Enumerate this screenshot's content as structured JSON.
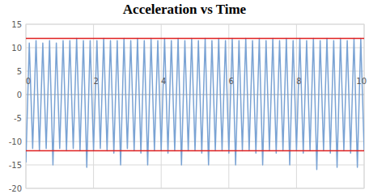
{
  "chart_data": {
    "type": "line",
    "title": "Acceleration vs Time",
    "x": [
      0,
      0.1,
      0.2,
      0.3,
      0.4,
      0.5,
      0.6,
      0.7,
      0.8,
      0.9,
      1,
      1.1,
      1.2,
      1.3,
      1.4,
      1.5,
      1.6,
      1.7,
      1.8,
      1.9,
      2,
      2.1,
      2.2,
      2.3,
      2.4,
      2.5,
      2.6,
      2.7,
      2.8,
      2.9,
      3,
      3.1,
      3.2,
      3.3,
      3.4,
      3.5,
      3.6,
      3.7,
      3.8,
      3.9,
      4,
      4.1,
      4.2,
      4.3,
      4.4,
      4.5,
      4.6,
      4.7,
      4.8,
      4.9,
      5,
      5.1,
      5.2,
      5.3,
      5.4,
      5.5,
      5.6,
      5.7,
      5.8,
      5.9,
      6,
      6.1,
      6.2,
      6.3,
      6.4,
      6.5,
      6.6,
      6.7,
      6.8,
      6.9,
      7,
      7.1,
      7.2,
      7.3,
      7.4,
      7.5,
      7.6,
      7.7,
      7.8,
      7.9,
      8,
      8.1,
      8.2,
      8.3,
      8.4,
      8.5,
      8.6,
      8.7,
      8.8,
      8.9,
      9,
      9.1,
      9.2,
      9.3,
      9.4,
      9.5,
      9.6,
      9.7,
      9.8,
      9.9,
      10
    ],
    "values": [
      -14.5,
      11,
      -11.5,
      11.5,
      -12,
      11,
      -11.5,
      11.5,
      -15,
      11,
      -11.5,
      11.5,
      -12,
      11.5,
      -11.5,
      12,
      -12,
      11.5,
      -15.5,
      11.5,
      -12,
      11.5,
      -11.5,
      12,
      -12,
      11.5,
      -12.5,
      11.5,
      -15,
      12,
      -11.5,
      11.5,
      -12,
      12,
      -12.5,
      11.5,
      -15,
      12,
      -12,
      11.5,
      -12,
      12,
      -12.5,
      11.5,
      -12,
      12,
      -15,
      11.5,
      -12,
      12,
      -12,
      11.5,
      -12.5,
      12,
      -15,
      11.5,
      -12,
      12,
      -12,
      11.5,
      -12.5,
      12,
      -15,
      11.5,
      -12,
      12,
      -12,
      11.5,
      -12.5,
      12,
      -15,
      11.5,
      -12,
      12,
      -12.5,
      11.5,
      -12,
      12,
      -15,
      11.5,
      -12,
      12,
      -12.5,
      11.5,
      -12,
      12,
      -16,
      11.5,
      -12,
      12,
      -12.5,
      11.5,
      -15.5,
      12,
      -12,
      11.5,
      -12.5,
      12,
      -15.5,
      12,
      -12
    ],
    "color": "#7aa3d4",
    "xlim": [
      0,
      10
    ],
    "xticks": [
      0,
      2,
      4,
      6,
      8,
      10
    ],
    "ylim": [
      -20,
      15
    ],
    "yticks": [
      -20,
      -15,
      -10,
      -5,
      0,
      5,
      10,
      15
    ],
    "grid": true,
    "reference_lines": [
      {
        "value": 12,
        "color": "#e02020"
      },
      {
        "value": -12,
        "color": "#e02020"
      }
    ]
  }
}
